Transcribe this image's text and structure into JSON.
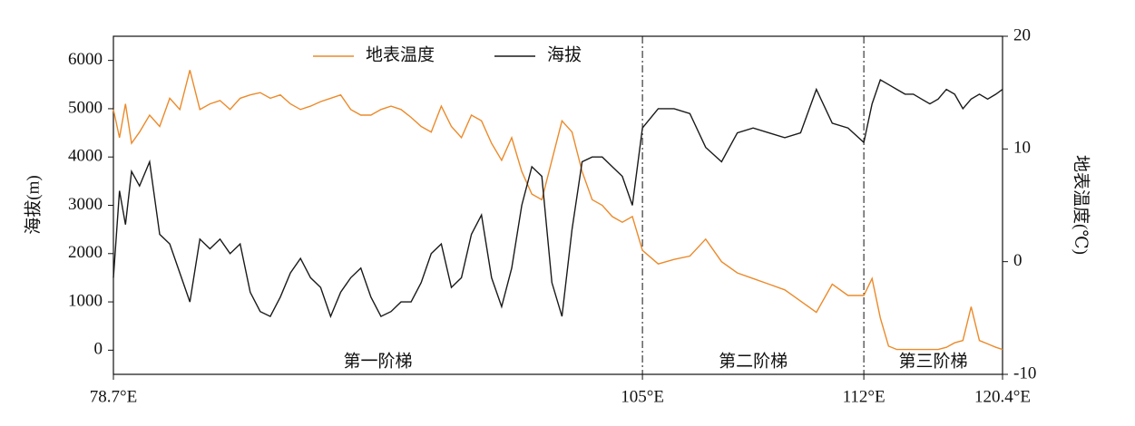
{
  "chart_data": {
    "type": "line",
    "y_label": "海拔(m)",
    "y2_label": "地表温度(℃)",
    "annotations": [
      "第一阶梯",
      "第二阶梯",
      "第三阶梯"
    ],
    "x": [
      78.7,
      79.0,
      79.3,
      79.6,
      80,
      80.5,
      81,
      81.5,
      82,
      82.5,
      83,
      83.5,
      84,
      84.5,
      85,
      85.5,
      86,
      86.5,
      87,
      87.5,
      88,
      88.5,
      89,
      89.5,
      90,
      90.5,
      91,
      91.5,
      92,
      92.5,
      93,
      93.5,
      94,
      94.5,
      95,
      95.5,
      96,
      96.5,
      97,
      97.5,
      98,
      98.5,
      99,
      99.5,
      100,
      100.5,
      101,
      101.5,
      102,
      102.5,
      103,
      103.5,
      104,
      104.5,
      105,
      105.5,
      106,
      106.5,
      107,
      107.5,
      108,
      108.5,
      109,
      109.5,
      110,
      110.5,
      111,
      111.5,
      112,
      112.5,
      113,
      113.5,
      114,
      114.5,
      115,
      115.5,
      116,
      116.5,
      117,
      117.5,
      118,
      118.5,
      119,
      119.5,
      120,
      120.4
    ],
    "series": [
      {
        "name": "地表温度",
        "color": "#ec8a2a",
        "axis": "y2",
        "values": [
          13.5,
          11,
          14,
          10.5,
          11.5,
          13,
          12,
          14.5,
          13.5,
          17,
          13.5,
          14,
          14.3,
          13.5,
          14.5,
          14.8,
          15,
          14.5,
          14.8,
          14,
          13.5,
          13.8,
          14.2,
          14.5,
          14.8,
          13.5,
          13,
          13,
          13.5,
          13.8,
          13.5,
          12.8,
          12,
          11.5,
          13.8,
          12,
          11,
          13,
          12.5,
          10.5,
          9,
          11,
          8,
          6,
          5.5,
          9,
          12.5,
          11.5,
          8,
          5.5,
          5,
          4,
          3.5,
          4,
          1,
          -0.2,
          0.2,
          0.5,
          2,
          0,
          -1,
          -1.5,
          -2,
          -2.5,
          -3.5,
          -4.5,
          -2,
          -3,
          -3,
          -1.5,
          -5,
          -7.5,
          -7.8,
          -7.8,
          -7.8,
          -7.8,
          -7.8,
          -7.8,
          -7.6,
          -7.2,
          -7,
          -4,
          -7,
          -7.3,
          -7.6,
          -7.8
        ]
      },
      {
        "name": "海拔",
        "color": "#1a1a1a",
        "values": [
          1500,
          3300,
          2600,
          3700,
          3400,
          3900,
          2400,
          2200,
          1600,
          1000,
          2300,
          2100,
          2300,
          2000,
          2200,
          1200,
          800,
          700,
          1100,
          1600,
          1900,
          1500,
          1300,
          700,
          1200,
          1500,
          1700,
          1100,
          700,
          800,
          1000,
          1000,
          1400,
          2000,
          2200,
          1300,
          1500,
          2400,
          2800,
          1500,
          900,
          1700,
          3000,
          3800,
          3600,
          1400,
          700,
          2500,
          3900,
          4000,
          4000,
          3800,
          3600,
          3000,
          4600,
          5000,
          5000,
          4900,
          4200,
          3900,
          4500,
          4600,
          4500,
          4400,
          4500,
          5400,
          4700,
          4600,
          4300,
          5100,
          5600,
          5500,
          5400,
          5300,
          5300,
          5200,
          5100,
          5200,
          5400,
          5300,
          5000,
          5200,
          5300,
          5200,
          5300,
          5400
        ]
      }
    ],
    "xticks": [
      {
        "value": 78.7,
        "label": "78.7°E"
      },
      {
        "value": 105,
        "label": "105°E"
      },
      {
        "value": 112,
        "label": "112°E"
      },
      {
        "value": 120.4,
        "label": "120.4°E"
      }
    ],
    "ylim": [
      -500,
      6500
    ],
    "yticks": [
      0,
      1000,
      2000,
      3000,
      4000,
      5000,
      6000
    ],
    "y2lim": [
      -10,
      20
    ],
    "y2ticks": [
      -10,
      0,
      10,
      20
    ],
    "legend": "top"
  }
}
